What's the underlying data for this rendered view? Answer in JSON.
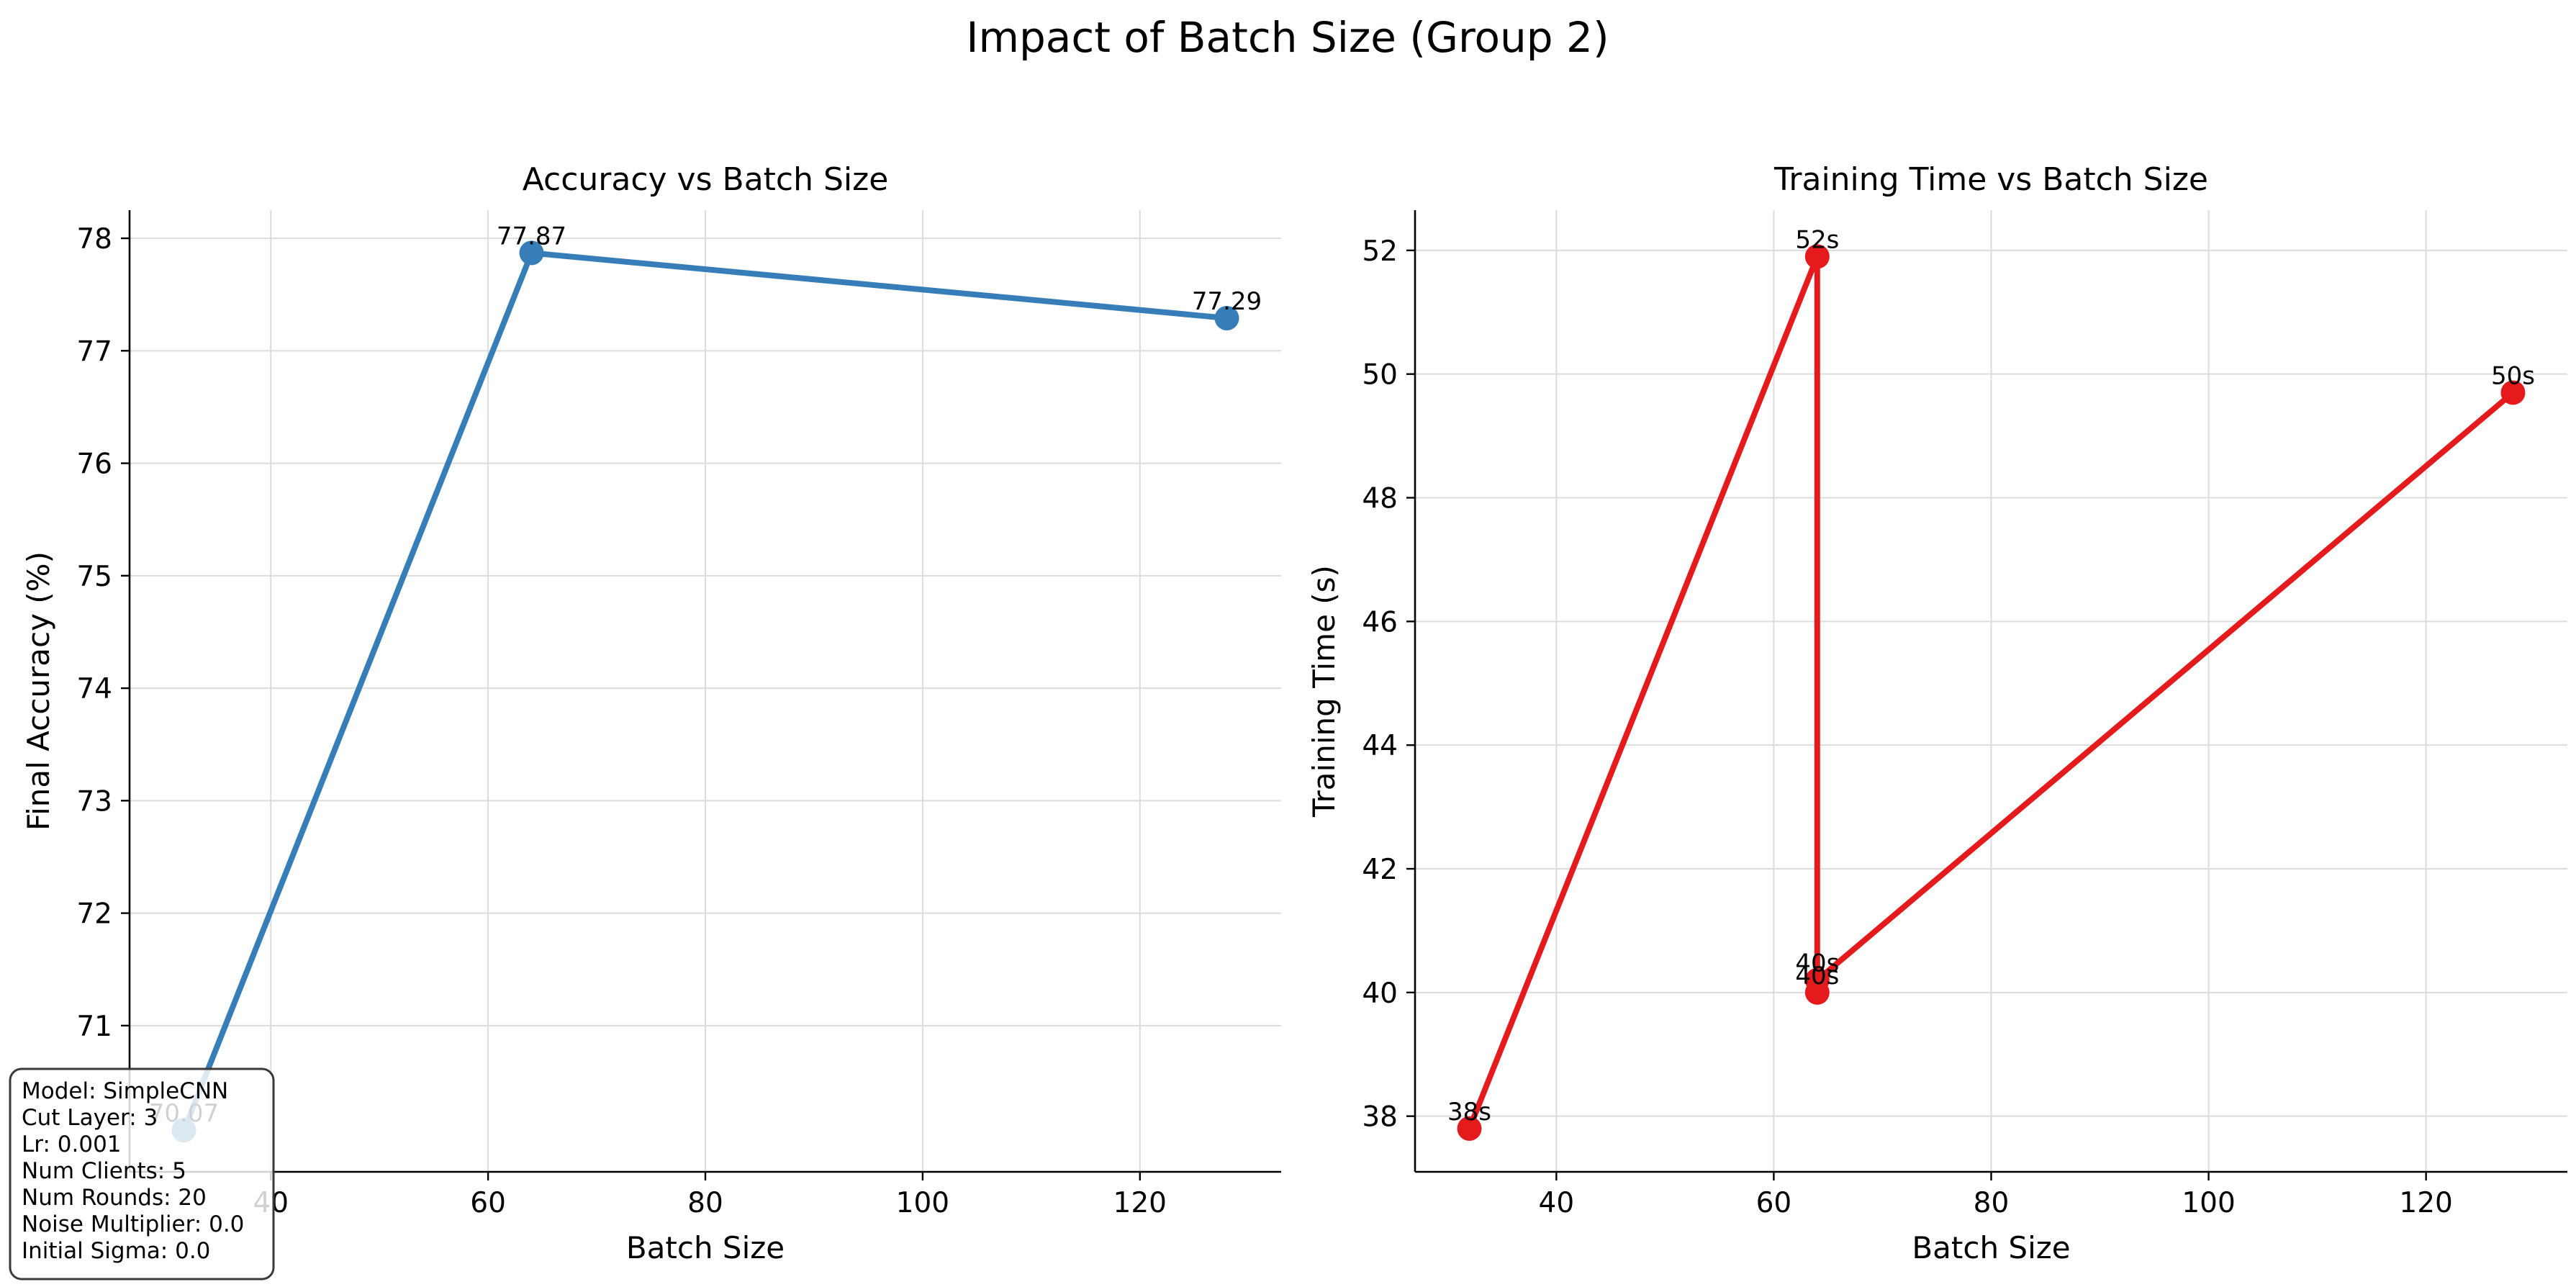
{
  "figure": {
    "suptitle": "Impact of Batch Size (Group 2)"
  },
  "chart_data": [
    {
      "type": "line",
      "title": "Accuracy vs Batch Size",
      "xlabel": "Batch Size",
      "ylabel": "Final Accuracy (%)",
      "xlim": [
        27,
        133
      ],
      "ylim": [
        69.7,
        78.25
      ],
      "xticks": [
        40,
        60,
        80,
        100,
        120
      ],
      "yticks": [
        71,
        72,
        73,
        74,
        75,
        76,
        77,
        78
      ],
      "grid": true,
      "color": "#377eb8",
      "x": [
        32,
        64,
        128
      ],
      "y": [
        70.07,
        77.87,
        77.29
      ],
      "labels": [
        "70.07",
        "77.87",
        "77.29"
      ]
    },
    {
      "type": "line",
      "title": "Training Time vs Batch Size",
      "xlabel": "Batch Size",
      "ylabel": "Training Time (s)",
      "xlim": [
        27,
        133
      ],
      "ylim": [
        37.1,
        52.65
      ],
      "xticks": [
        40,
        60,
        80,
        100,
        120
      ],
      "yticks": [
        38,
        40,
        42,
        44,
        46,
        48,
        50,
        52
      ],
      "grid": true,
      "color": "#e41a1c",
      "x": [
        32,
        64,
        64,
        64,
        128
      ],
      "y": [
        37.8,
        51.9,
        40.0,
        40.2,
        49.7
      ],
      "labels": [
        "38s",
        "52s",
        "40s",
        "40s",
        "50s"
      ]
    }
  ],
  "info_box": {
    "lines": [
      "Model: SimpleCNN",
      "Cut Layer: 3",
      "Lr: 0.001",
      "Num Clients: 5",
      "Num Rounds: 20",
      "Noise Multiplier: 0.0",
      "Initial Sigma: 0.0"
    ]
  }
}
